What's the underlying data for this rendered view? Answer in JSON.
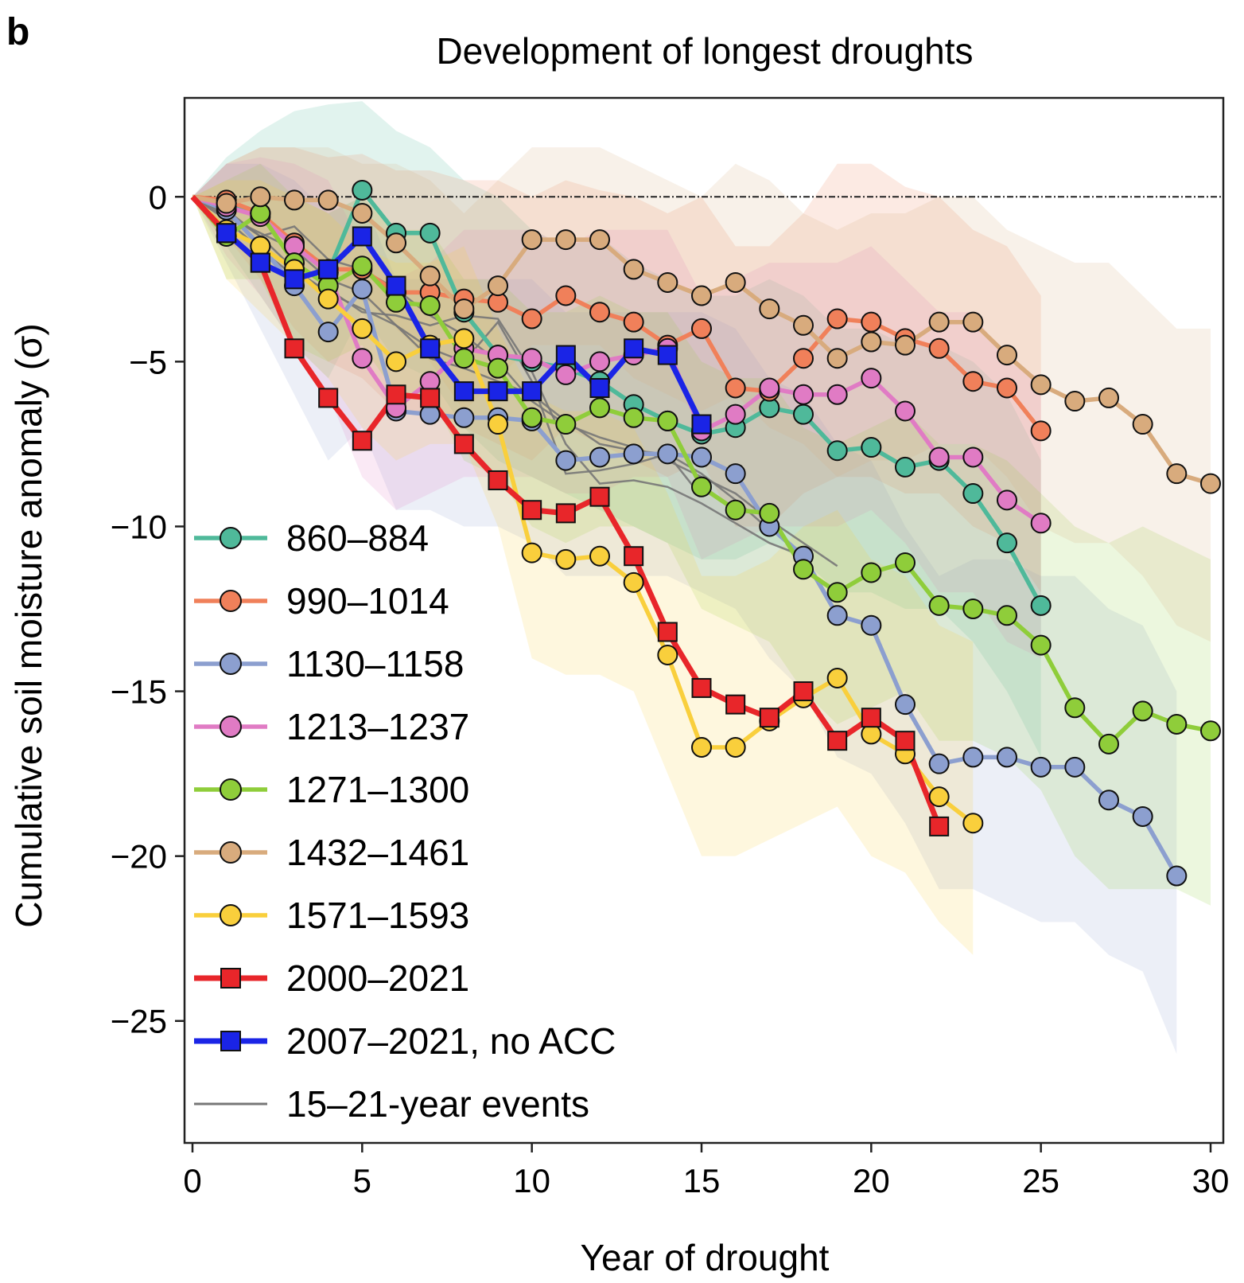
{
  "chart_data": {
    "type": "line",
    "panel_label": "b",
    "title": "Development of longest droughts",
    "xlabel": "Year of drought",
    "ylabel": "Cumulative soil moisture anomaly (σ)",
    "xlim": [
      0,
      30
    ],
    "ylim": [
      -28.7,
      3
    ],
    "xticks": [
      0,
      5,
      10,
      15,
      20,
      25,
      30
    ],
    "yticks": [
      0,
      -5,
      -10,
      -15,
      -20,
      -25
    ],
    "ytick_labels": [
      "0",
      "−5",
      "−10",
      "−15",
      "−20",
      "−25"
    ],
    "zero_line": true,
    "legend_position": "lower-left",
    "series": [
      {
        "name": "860–884",
        "color": "#4fb99a",
        "marker": "circle",
        "x": [
          0,
          1,
          2,
          3,
          4,
          5,
          6,
          7,
          8,
          9,
          10,
          11,
          12,
          13,
          14,
          15,
          16,
          17,
          18,
          19,
          20,
          21,
          22,
          23,
          24,
          25
        ],
        "y": [
          0,
          -0.2,
          -0.5,
          -1.5,
          -2.3,
          0.2,
          -1.1,
          -1.1,
          -3.5,
          -4.8,
          -5.0,
          -5.2,
          -5.6,
          -6.3,
          -6.8,
          -7.2,
          -7.0,
          -6.4,
          -6.6,
          -7.7,
          -7.6,
          -8.2,
          -8.0,
          -9.0,
          -10.5,
          -12.4
        ],
        "band_upper": [
          0,
          1.2,
          2.0,
          2.6,
          2.8,
          2.9,
          2.0,
          1.5,
          0.5,
          0,
          -1,
          -1.5,
          -1.2,
          -2,
          -2.5,
          -3,
          -3,
          -2.5,
          -3,
          -4,
          -4,
          -4.5,
          -4.5,
          -5,
          -6,
          -8
        ],
        "band_lower": [
          0,
          -1.5,
          -3,
          -4.5,
          -5.5,
          -3.5,
          -5,
          -5.5,
          -7,
          -8,
          -8.5,
          -9,
          -9.5,
          -10,
          -10.5,
          -11,
          -11,
          -10.5,
          -11,
          -12,
          -12,
          -12.5,
          -12.5,
          -13.5,
          -15,
          -17
        ]
      },
      {
        "name": "990–1014",
        "color": "#f0805a",
        "marker": "circle",
        "x": [
          0,
          1,
          2,
          3,
          4,
          5,
          6,
          7,
          8,
          9,
          10,
          11,
          12,
          13,
          14,
          15,
          16,
          17,
          18,
          19,
          20,
          21,
          22,
          23,
          24,
          25
        ],
        "y": [
          0,
          -0.1,
          -0.5,
          -1.4,
          -2.2,
          -2.2,
          -2.9,
          -2.9,
          -3.1,
          -3.2,
          -3.7,
          -3.0,
          -3.5,
          -3.8,
          -4.5,
          -4.0,
          -5.8,
          -5.9,
          -4.9,
          -3.7,
          -3.8,
          -4.3,
          -4.6,
          -5.6,
          -5.8,
          -7.1
        ],
        "band_upper": [
          0,
          1,
          1.5,
          1.5,
          1.2,
          1.3,
          0.8,
          0.8,
          0.5,
          0.5,
          0,
          0.5,
          0.2,
          0,
          -0.5,
          0,
          -1.5,
          -1.5,
          -0.5,
          1,
          1,
          0.3,
          0,
          -1,
          -1.5,
          -3
        ],
        "band_lower": [
          0,
          -1.2,
          -2.5,
          -4,
          -5,
          -5.5,
          -6.5,
          -6.5,
          -7,
          -7.5,
          -8,
          -7,
          -7.5,
          -8,
          -8.5,
          -8,
          -10,
          -10,
          -9,
          -8.5,
          -8.5,
          -9,
          -9,
          -10,
          -10.5,
          -12
        ]
      },
      {
        "name": "1130–1158",
        "color": "#8c9fcf",
        "marker": "circle",
        "x": [
          0,
          1,
          2,
          3,
          4,
          5,
          6,
          7,
          8,
          9,
          10,
          11,
          12,
          13,
          14,
          15,
          16,
          17,
          18,
          19,
          20,
          21,
          22,
          23,
          24,
          25,
          26,
          27,
          28,
          29
        ],
        "y": [
          0,
          -0.4,
          -1.5,
          -2.7,
          -4.1,
          -2.8,
          -6.5,
          -6.6,
          -6.7,
          -6.7,
          -6.8,
          -8.0,
          -7.9,
          -7.8,
          -7.8,
          -7.9,
          -8.4,
          -10.0,
          -10.9,
          -12.7,
          -13.0,
          -15.4,
          -17.2,
          -17.0,
          -17.0,
          -17.3,
          -17.3,
          -18.3,
          -18.8,
          -20.6
        ],
        "band_upper": [
          0,
          1,
          1,
          0.5,
          -0.5,
          0,
          -2.5,
          -2.5,
          -2.5,
          -2.5,
          -2.5,
          -3.5,
          -3.5,
          -3.5,
          -3.5,
          -3.5,
          -4,
          -5.5,
          -6,
          -7.5,
          -8,
          -10,
          -11.5,
          -11,
          -11,
          -11.5,
          -11.5,
          -12.5,
          -13,
          -15
        ],
        "band_lower": [
          0,
          -2,
          -4,
          -6,
          -8,
          -7,
          -9.5,
          -9.5,
          -10,
          -10,
          -10.5,
          -11.5,
          -11.5,
          -11.5,
          -11.5,
          -12,
          -12.5,
          -14,
          -15,
          -17,
          -17.5,
          -19,
          -21,
          -21,
          -21.5,
          -22,
          -22,
          -23,
          -23.5,
          -26
        ]
      },
      {
        "name": "1213–1237",
        "color": "#e07bc4",
        "marker": "circle",
        "x": [
          0,
          1,
          2,
          3,
          4,
          5,
          6,
          7,
          8,
          9,
          10,
          11,
          12,
          13,
          14,
          15,
          16,
          17,
          18,
          19,
          20,
          21,
          22,
          23,
          24,
          25
        ],
        "y": [
          0,
          -0.3,
          -0.6,
          -1.5,
          -2.3,
          -4.9,
          -6.4,
          -5.6,
          -4.6,
          -4.8,
          -4.9,
          -5.4,
          -5.0,
          -4.8,
          -4.6,
          -7.1,
          -6.6,
          -5.8,
          -6.0,
          -6.0,
          -5.5,
          -6.5,
          -7.9,
          -7.9,
          -9.2,
          -9.9
        ],
        "band_upper": [
          0,
          1,
          1.2,
          1,
          0.5,
          -1.5,
          -2.5,
          -2,
          -1,
          -1,
          -1,
          -1.5,
          -1,
          -1,
          -1,
          -3,
          -2.5,
          -2,
          -2,
          -2,
          -1.5,
          -2.5,
          -3.5,
          -3.5,
          -5,
          -5.5
        ],
        "band_lower": [
          0,
          -1.8,
          -3,
          -4.5,
          -6,
          -8.5,
          -9.5,
          -9,
          -8.5,
          -8.5,
          -8.5,
          -9,
          -9,
          -8.5,
          -8.5,
          -11,
          -10.5,
          -10,
          -10,
          -10,
          -9.5,
          -10.5,
          -12,
          -12,
          -13.5,
          -14
        ]
      },
      {
        "name": "1271–1300",
        "color": "#8fcd3a",
        "marker": "circle",
        "x": [
          0,
          1,
          2,
          3,
          4,
          5,
          6,
          7,
          8,
          9,
          10,
          11,
          12,
          13,
          14,
          15,
          16,
          17,
          18,
          19,
          20,
          21,
          22,
          23,
          24,
          25,
          26,
          27,
          28,
          29,
          30
        ],
        "y": [
          0,
          -1.2,
          -0.5,
          -2.0,
          -2.7,
          -2.1,
          -3.2,
          -3.3,
          -4.9,
          -5.2,
          -6.7,
          -6.9,
          -6.4,
          -6.7,
          -6.8,
          -8.8,
          -9.5,
          -9.6,
          -11.3,
          -12.0,
          -11.4,
          -11.1,
          -12.4,
          -12.5,
          -12.7,
          -13.6,
          -15.5,
          -16.6,
          -15.6,
          -16.0,
          -16.2
        ],
        "band_upper": [
          0,
          0.5,
          1,
          0,
          -0.5,
          0,
          -1,
          -1,
          -2.5,
          -2.5,
          -3.5,
          -3.5,
          -3,
          -3.5,
          -3.5,
          -5,
          -5.5,
          -5.5,
          -7,
          -7.5,
          -7,
          -6.5,
          -7.5,
          -7.5,
          -8,
          -9,
          -10,
          -10.5,
          -10,
          -10.5,
          -11
        ],
        "band_lower": [
          0,
          -2.5,
          -2.5,
          -4.5,
          -5,
          -4.5,
          -6,
          -6,
          -8,
          -8.5,
          -10,
          -10.5,
          -10,
          -10,
          -10.5,
          -12.5,
          -13,
          -13.5,
          -15,
          -16,
          -15.5,
          -15,
          -16.5,
          -16.5,
          -17,
          -18,
          -20,
          -21,
          -21,
          -21,
          -21.5
        ]
      },
      {
        "name": "1432–1461",
        "color": "#d8ab7d",
        "marker": "circle",
        "x": [
          0,
          1,
          2,
          3,
          4,
          5,
          6,
          7,
          8,
          9,
          10,
          11,
          12,
          13,
          14,
          15,
          16,
          17,
          18,
          19,
          20,
          21,
          22,
          23,
          24,
          25,
          26,
          27,
          28,
          29,
          30
        ],
        "y": [
          0,
          -0.2,
          0.0,
          -0.1,
          -0.1,
          -0.5,
          -1.4,
          -2.4,
          -3.4,
          -2.7,
          -1.3,
          -1.3,
          -1.3,
          -2.2,
          -2.6,
          -3.0,
          -2.6,
          -3.4,
          -3.9,
          -4.9,
          -4.4,
          -4.5,
          -3.8,
          -3.8,
          -4.8,
          -5.7,
          -6.2,
          -6.1,
          -6.9,
          -8.4,
          -8.7
        ],
        "band_upper": [
          0,
          1,
          1.5,
          1.5,
          1.5,
          1,
          1,
          0.5,
          -0.5,
          0.5,
          1.5,
          1.5,
          1.5,
          1,
          0.5,
          0,
          1,
          0.5,
          -0.5,
          -1,
          -0.5,
          -0.5,
          0,
          0,
          -1,
          -1.5,
          -2,
          -2,
          -3,
          -4,
          -4
        ],
        "band_lower": [
          0,
          -1.5,
          -1.5,
          -2,
          -2.5,
          -3,
          -4,
          -5,
          -6.5,
          -5.5,
          -4.5,
          -4.5,
          -4.5,
          -5.5,
          -6,
          -6.5,
          -6,
          -7,
          -7.5,
          -8.5,
          -8,
          -8,
          -7.5,
          -7.5,
          -8.5,
          -10,
          -10.5,
          -10.5,
          -11.5,
          -13,
          -13.5
        ]
      },
      {
        "name": "1571–1593",
        "color": "#f9cf3c",
        "marker": "circle",
        "x": [
          0,
          1,
          2,
          3,
          4,
          5,
          6,
          7,
          8,
          9,
          10,
          11,
          12,
          13,
          14,
          15,
          16,
          17,
          18,
          19,
          20,
          21,
          22,
          23
        ],
        "y": [
          0,
          -1.0,
          -1.5,
          -2.2,
          -3.1,
          -4.0,
          -5.0,
          -4.5,
          -4.3,
          -6.9,
          -10.8,
          -11.0,
          -10.9,
          -11.7,
          -13.9,
          -16.7,
          -16.7,
          -15.9,
          -15.2,
          -14.6,
          -16.3,
          -16.9,
          -18.2,
          -19.0
        ],
        "band_upper": [
          0,
          0.5,
          0.5,
          0,
          -0.5,
          -1.5,
          -2,
          -2,
          -1.5,
          -4,
          -6,
          -6.5,
          -6.5,
          -7,
          -9,
          -11.5,
          -11.5,
          -11,
          -10,
          -9.5,
          -11,
          -11.5,
          -13,
          -13.5
        ],
        "band_lower": [
          0,
          -2.5,
          -3.5,
          -4.5,
          -5.5,
          -7,
          -8,
          -7.5,
          -7.5,
          -10,
          -14,
          -14.5,
          -14.5,
          -15,
          -17.5,
          -20,
          -20,
          -19.5,
          -19,
          -18.5,
          -20,
          -20.5,
          -22,
          -23
        ]
      },
      {
        "name": "2000–2021",
        "color": "#e8262a",
        "marker": "square",
        "x": [
          0,
          1,
          2,
          3,
          4,
          5,
          6,
          7,
          8,
          9,
          10,
          11,
          12,
          13,
          14,
          15,
          16,
          17,
          18,
          19,
          20,
          21,
          22
        ],
        "y": [
          0,
          -1.1,
          -2.0,
          -4.6,
          -6.1,
          -7.4,
          -6.0,
          -6.1,
          -7.5,
          -8.6,
          -9.5,
          -9.6,
          -9.1,
          -10.9,
          -13.2,
          -14.9,
          -15.4,
          -15.8,
          -15.0,
          -16.5,
          -15.8,
          -16.5,
          -19.1
        ]
      },
      {
        "name": "2007–2021, no ACC",
        "color": "#1a24e6",
        "marker": "square",
        "x": [
          1,
          2,
          3,
          4,
          5,
          6,
          7,
          8,
          9,
          10,
          11,
          12,
          13,
          14,
          15
        ],
        "y": [
          -1.1,
          -2.0,
          -2.5,
          -2.2,
          -1.2,
          -2.7,
          -4.6,
          -5.9,
          -5.9,
          -5.9,
          -4.8,
          -5.8,
          -4.6,
          -4.8,
          -6.9
        ]
      }
    ],
    "gray_lines": {
      "name": "15–21-year events",
      "color": "#777777",
      "lines": [
        {
          "x": [
            0,
            1,
            2,
            3,
            4,
            5,
            6,
            7,
            8,
            9,
            10,
            11,
            12,
            13,
            14,
            15,
            16,
            17,
            18,
            19
          ],
          "y": [
            0,
            -0.5,
            -1.2,
            -0.9,
            -1.9,
            -2.2,
            -2.8,
            -3.6,
            -4.2,
            -5.0,
            -6.2,
            -6.9,
            -7.3,
            -7.6,
            -8.0,
            -8.5,
            -9.0,
            -9.8,
            -10.5,
            -11.2
          ]
        },
        {
          "x": [
            0,
            1,
            2,
            3,
            4,
            5,
            6,
            7,
            8,
            9,
            10,
            11,
            12,
            13,
            14,
            15,
            16,
            17,
            18
          ],
          "y": [
            0,
            -0.7,
            -1.6,
            -2.4,
            -2.8,
            -3.5,
            -3.6,
            -3.9,
            -3.6,
            -3.7,
            -5.3,
            -7.5,
            -8.7,
            -8.6,
            -8.8,
            -9.3,
            -9.9,
            -10.5,
            -10.9
          ]
        },
        {
          "x": [
            0,
            1,
            2,
            3,
            4,
            5,
            6,
            7,
            8,
            9,
            10,
            11,
            12,
            13,
            14,
            15
          ],
          "y": [
            0,
            -0.4,
            -1.2,
            -2.2,
            -2.9,
            -3.4,
            -3.9,
            -4.6,
            -5.0,
            -3.8,
            -5.6,
            -8.4,
            -8.3,
            -8.1,
            -7.8,
            -9.1
          ]
        },
        {
          "x": [
            0,
            1,
            2,
            3,
            4,
            5,
            6,
            7,
            8,
            9,
            10,
            11,
            12,
            13,
            14,
            15,
            16,
            17
          ],
          "y": [
            0,
            -0.6,
            -1.1,
            -1.6,
            -2.5,
            -2.9,
            -3.9,
            -4.9,
            -5.2,
            -5.6,
            -6.0,
            -6.8,
            -7.5,
            -7.7,
            -7.8,
            -8.4,
            -9.2,
            -10.1
          ]
        }
      ]
    }
  }
}
